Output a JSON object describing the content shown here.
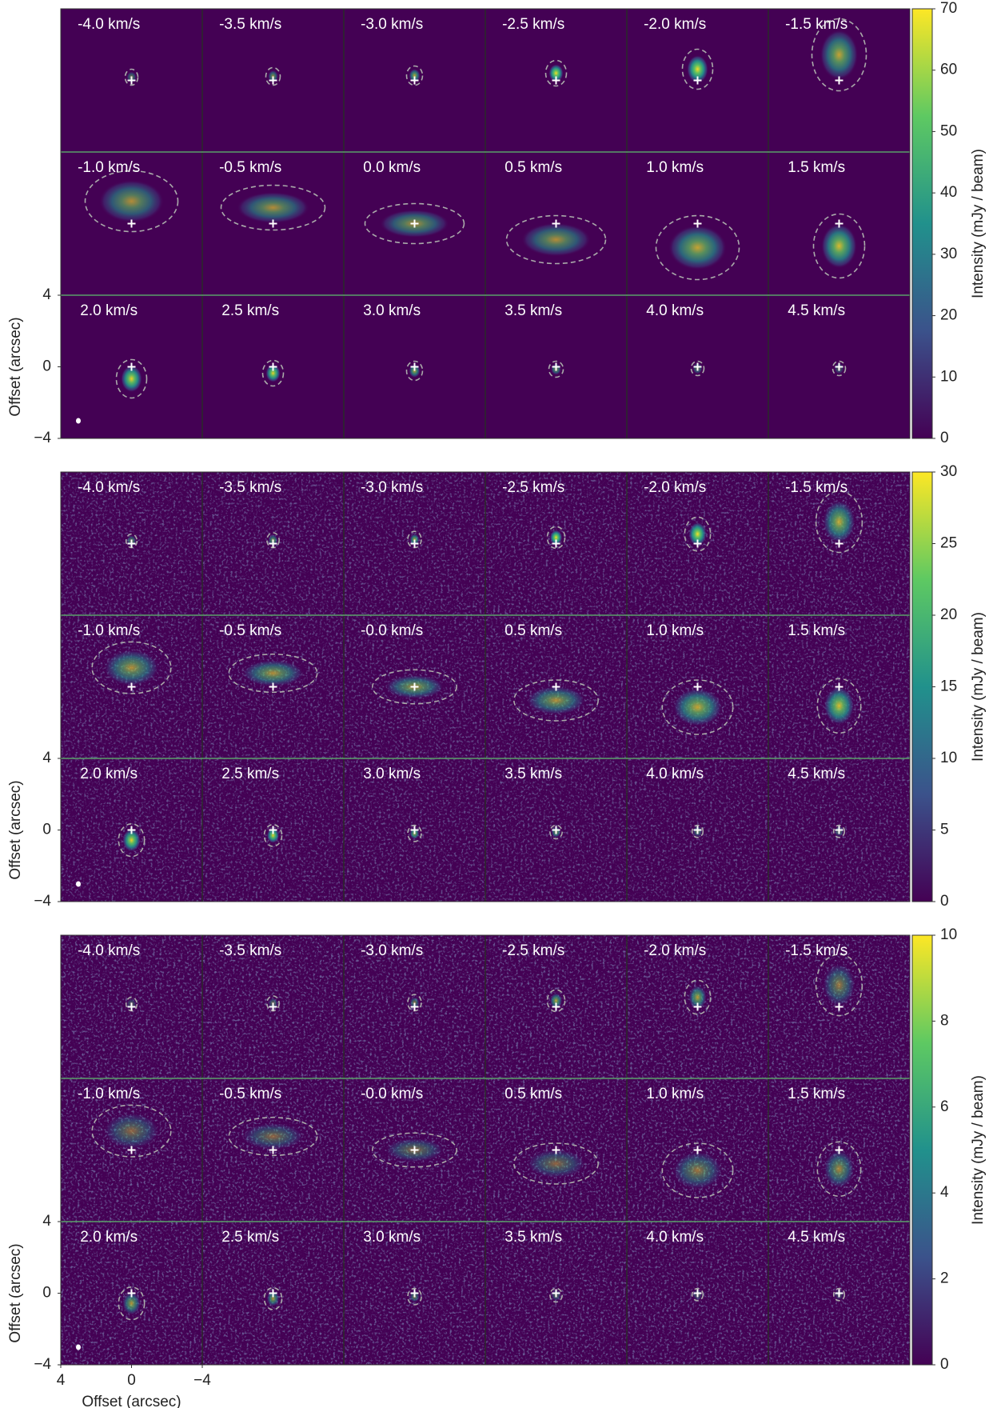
{
  "chart_data": [
    {
      "type": "channel-map",
      "panels": [
        "-4.0 km/s",
        "-3.5 km/s",
        "-3.0 km/s",
        "-2.5 km/s",
        "-2.0 km/s",
        "-1.5 km/s",
        "-1.0 km/s",
        "-0.5 km/s",
        "0.0 km/s",
        "0.5 km/s",
        "1.0 km/s",
        "1.5 km/s",
        "2.0 km/s",
        "2.5 km/s",
        "3.0 km/s",
        "3.5 km/s",
        "4.0 km/s",
        "4.5 km/s"
      ],
      "ylabel": "Offset (arcsec)",
      "ylim": [
        -4,
        4
      ],
      "yticks": [
        4,
        0,
        {
          "value": -4,
          "label": "−4"
        }
      ],
      "clabel": "Intensity (mJy / beam)",
      "clim": [
        0,
        70
      ],
      "cticks": [
        0,
        10,
        20,
        30,
        40,
        50,
        60,
        70
      ]
    },
    {
      "type": "channel-map",
      "panels": [
        "-4.0 km/s",
        "-3.5 km/s",
        "-3.0 km/s",
        "-2.5 km/s",
        "-2.0 km/s",
        "-1.5 km/s",
        "-1.0 km/s",
        "-0.5 km/s",
        "-0.0 km/s",
        "0.5 km/s",
        "1.0 km/s",
        "1.5 km/s",
        "2.0 km/s",
        "2.5 km/s",
        "3.0 km/s",
        "3.5 km/s",
        "4.0 km/s",
        "4.5 km/s"
      ],
      "ylabel": "Offset (arcsec)",
      "ylim": [
        -4,
        4
      ],
      "yticks": [
        4,
        0,
        {
          "value": -4,
          "label": "−4"
        }
      ],
      "clabel": "Intensity (mJy / beam)",
      "clim": [
        0,
        30
      ],
      "cticks": [
        0,
        5,
        10,
        15,
        20,
        25,
        30
      ]
    },
    {
      "type": "channel-map",
      "panels": [
        "-4.0 km/s",
        "-3.5 km/s",
        "-3.0 km/s",
        "-2.5 km/s",
        "-2.0 km/s",
        "-1.5 km/s",
        "-1.0 km/s",
        "-0.5 km/s",
        "-0.0 km/s",
        "0.5 km/s",
        "1.0 km/s",
        "1.5 km/s",
        "2.0 km/s",
        "2.5 km/s",
        "3.0 km/s",
        "3.5 km/s",
        "4.0 km/s",
        "4.5 km/s"
      ],
      "ylabel": "Offset (arcsec)",
      "ylim": [
        -4,
        4
      ],
      "yticks": [
        4,
        0,
        {
          "value": -4,
          "label": "−4"
        }
      ],
      "xlabel": "Offset (arcsec)",
      "xlim": [
        4,
        -4
      ],
      "xticks": [
        4,
        0,
        {
          "value": -4,
          "label": "−4"
        }
      ],
      "clabel": "Intensity (mJy / beam)",
      "clim": [
        0,
        10
      ],
      "cticks": [
        0,
        2,
        4,
        6,
        8,
        10
      ]
    }
  ]
}
